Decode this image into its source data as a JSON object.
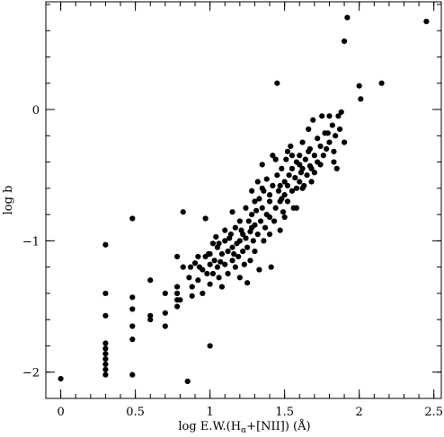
{
  "chart_data": {
    "type": "scatter",
    "xlabel": "log E.W.(Hα+[NII]) (Å)",
    "xlabel_parts": {
      "prefix": "log E.W.(H",
      "subscript": "α",
      "suffix": "+[NII]) (Å)"
    },
    "ylabel": "log b",
    "xlim": [
      -0.1,
      2.55
    ],
    "ylim": [
      -2.2,
      0.82
    ],
    "x_ticks": [
      0,
      0.5,
      1,
      1.5,
      2,
      2.5
    ],
    "x_tick_labels": [
      "0",
      "0.5",
      "1",
      "1.5",
      "2",
      "2.5"
    ],
    "y_ticks": [
      -2,
      -1,
      0
    ],
    "y_tick_labels": [
      "−2",
      "−1",
      "0"
    ],
    "minor_tick_step_x": 0.1,
    "minor_tick_step_y": 0.2,
    "grid": false,
    "marker_color": "#000000",
    "points": [
      [
        0.0,
        -2.05
      ],
      [
        0.3,
        -1.03
      ],
      [
        0.3,
        -1.4
      ],
      [
        0.3,
        -1.57
      ],
      [
        0.3,
        -1.78
      ],
      [
        0.3,
        -1.82
      ],
      [
        0.3,
        -1.86
      ],
      [
        0.3,
        -1.9
      ],
      [
        0.3,
        -1.94
      ],
      [
        0.3,
        -1.98
      ],
      [
        0.3,
        -2.02
      ],
      [
        0.48,
        -0.83
      ],
      [
        0.48,
        -1.43
      ],
      [
        0.48,
        -1.52
      ],
      [
        0.48,
        -1.65
      ],
      [
        0.48,
        -1.75
      ],
      [
        0.48,
        -2.02
      ],
      [
        0.6,
        -1.3
      ],
      [
        0.6,
        -1.57
      ],
      [
        0.6,
        -1.6
      ],
      [
        0.7,
        -1.4
      ],
      [
        0.7,
        -1.55
      ],
      [
        0.7,
        -1.65
      ],
      [
        0.78,
        -1.12
      ],
      [
        0.78,
        -1.35
      ],
      [
        0.78,
        -1.4
      ],
      [
        0.78,
        -1.45
      ],
      [
        0.78,
        -1.5
      ],
      [
        0.82,
        -0.78
      ],
      [
        0.82,
        -1.2
      ],
      [
        0.85,
        -2.07
      ],
      [
        0.87,
        -1.2
      ],
      [
        0.88,
        -1.35
      ],
      [
        0.88,
        -1.42
      ],
      [
        0.9,
        -1.17
      ],
      [
        0.92,
        -1.3
      ],
      [
        0.93,
        -1.2
      ],
      [
        0.95,
        -1.4
      ],
      [
        0.97,
        -0.83
      ],
      [
        0.97,
        -1.12
      ],
      [
        0.98,
        -1.25
      ],
      [
        0.99,
        -1.1
      ],
      [
        1.0,
        -1.18
      ],
      [
        1.0,
        -1.33
      ],
      [
        1.0,
        -1.8
      ],
      [
        1.02,
        -1.02
      ],
      [
        1.02,
        -1.25
      ],
      [
        1.03,
        -1.15
      ],
      [
        1.04,
        -0.97
      ],
      [
        1.05,
        -1.05
      ],
      [
        1.05,
        -1.2
      ],
      [
        1.06,
        -1.28
      ],
      [
        1.07,
        -1.16
      ],
      [
        1.08,
        -1.1
      ],
      [
        1.08,
        -1.35
      ],
      [
        1.1,
        -0.92
      ],
      [
        1.1,
        -1.0
      ],
      [
        1.1,
        -1.18
      ],
      [
        1.12,
        -1.08
      ],
      [
        1.12,
        -1.25
      ],
      [
        1.14,
        -0.95
      ],
      [
        1.15,
        -0.78
      ],
      [
        1.15,
        -1.05
      ],
      [
        1.15,
        -1.15
      ],
      [
        1.17,
        -0.9
      ],
      [
        1.17,
        -1.2
      ],
      [
        1.18,
        -1.02
      ],
      [
        1.19,
        -1.12
      ],
      [
        1.2,
        -0.85
      ],
      [
        1.2,
        -1.0
      ],
      [
        1.2,
        -1.28
      ],
      [
        1.21,
        -0.92
      ],
      [
        1.22,
        -1.08
      ],
      [
        1.23,
        -1.18
      ],
      [
        1.24,
        -0.75
      ],
      [
        1.24,
        -0.98
      ],
      [
        1.25,
        -1.05
      ],
      [
        1.25,
        -1.32
      ],
      [
        1.26,
        -0.85
      ],
      [
        1.27,
        -0.93
      ],
      [
        1.27,
        -1.15
      ],
      [
        1.28,
        -0.62
      ],
      [
        1.28,
        -0.8
      ],
      [
        1.29,
        -1.0
      ],
      [
        1.3,
        -0.7
      ],
      [
        1.3,
        -0.88
      ],
      [
        1.3,
        -1.08
      ],
      [
        1.31,
        -0.77
      ],
      [
        1.32,
        -0.55
      ],
      [
        1.32,
        -0.95
      ],
      [
        1.33,
        -0.68
      ],
      [
        1.33,
        -1.22
      ],
      [
        1.34,
        -0.85
      ],
      [
        1.35,
        -0.42
      ],
      [
        1.35,
        -0.75
      ],
      [
        1.36,
        -0.62
      ],
      [
        1.36,
        -1.0
      ],
      [
        1.37,
        -0.9
      ],
      [
        1.38,
        -0.53
      ],
      [
        1.38,
        -0.8
      ],
      [
        1.4,
        -0.65
      ],
      [
        1.4,
        -0.7
      ],
      [
        1.4,
        -0.95
      ],
      [
        1.41,
        -1.2
      ],
      [
        1.42,
        -0.35
      ],
      [
        1.42,
        -0.58
      ],
      [
        1.43,
        -0.85
      ],
      [
        1.44,
        -0.75
      ],
      [
        1.45,
        0.2
      ],
      [
        1.45,
        -0.5
      ],
      [
        1.46,
        -0.62
      ],
      [
        1.47,
        -0.7
      ],
      [
        1.47,
        -0.92
      ],
      [
        1.48,
        -0.45
      ],
      [
        1.49,
        -0.78
      ],
      [
        1.5,
        -0.55
      ],
      [
        1.5,
        -0.65
      ],
      [
        1.5,
        -0.82
      ],
      [
        1.51,
        -0.38
      ],
      [
        1.52,
        -0.58
      ],
      [
        1.52,
        -0.7
      ],
      [
        1.53,
        -0.5
      ],
      [
        1.54,
        -0.28
      ],
      [
        1.55,
        -0.45
      ],
      [
        1.55,
        -0.62
      ],
      [
        1.56,
        -0.75
      ],
      [
        1.57,
        -0.52
      ],
      [
        1.58,
        -0.4
      ],
      [
        1.58,
        -0.6
      ],
      [
        1.6,
        -0.35
      ],
      [
        1.6,
        -0.55
      ],
      [
        1.61,
        -0.48
      ],
      [
        1.62,
        -0.25
      ],
      [
        1.62,
        -0.45
      ],
      [
        1.63,
        -0.58
      ],
      [
        1.64,
        -0.38
      ],
      [
        1.65,
        -0.5
      ],
      [
        1.66,
        -0.15
      ],
      [
        1.67,
        -0.3
      ],
      [
        1.67,
        -0.43
      ],
      [
        1.68,
        -0.55
      ],
      [
        1.69,
        -0.08
      ],
      [
        1.7,
        -0.35
      ],
      [
        1.7,
        -0.48
      ],
      [
        1.72,
        -0.22
      ],
      [
        1.72,
        -0.4
      ],
      [
        1.74,
        -0.28
      ],
      [
        1.75,
        -0.05
      ],
      [
        1.76,
        -0.35
      ],
      [
        1.77,
        -0.18
      ],
      [
        1.78,
        -0.3
      ],
      [
        1.8,
        -0.05
      ],
      [
        1.8,
        -0.25
      ],
      [
        1.82,
        -0.12
      ],
      [
        1.83,
        -0.4
      ],
      [
        1.84,
        -0.2
      ],
      [
        1.85,
        -0.45
      ],
      [
        1.86,
        -0.05
      ],
      [
        1.87,
        -0.15
      ],
      [
        1.88,
        -0.02
      ],
      [
        1.9,
        -0.25
      ],
      [
        1.9,
        0.52
      ],
      [
        1.92,
        0.7
      ],
      [
        2.0,
        0.18
      ],
      [
        2.01,
        0.08
      ],
      [
        2.15,
        0.2
      ],
      [
        2.45,
        0.67
      ],
      [
        1.62,
        -0.6
      ],
      [
        1.55,
        -0.35
      ],
      [
        1.47,
        -0.58
      ],
      [
        1.4,
        -0.82
      ],
      [
        1.35,
        -0.6
      ],
      [
        1.28,
        -0.9
      ],
      [
        1.22,
        -0.95
      ],
      [
        1.16,
        -1.1
      ],
      [
        1.13,
        -0.98
      ],
      [
        1.06,
        -1.02
      ],
      [
        1.0,
        -1.1
      ],
      [
        0.95,
        -1.22
      ],
      [
        0.92,
        -1.12
      ],
      [
        0.86,
        -1.28
      ],
      [
        0.8,
        -1.45
      ],
      [
        1.58,
        -0.75
      ],
      [
        1.68,
        -0.45
      ],
      [
        1.74,
        -0.42
      ],
      [
        1.79,
        -0.18
      ],
      [
        1.83,
        -0.32
      ],
      [
        1.44,
        -0.38
      ],
      [
        1.52,
        -0.32
      ],
      [
        1.6,
        -0.42
      ],
      [
        1.66,
        -0.32
      ],
      [
        1.48,
        -0.68
      ]
    ]
  }
}
